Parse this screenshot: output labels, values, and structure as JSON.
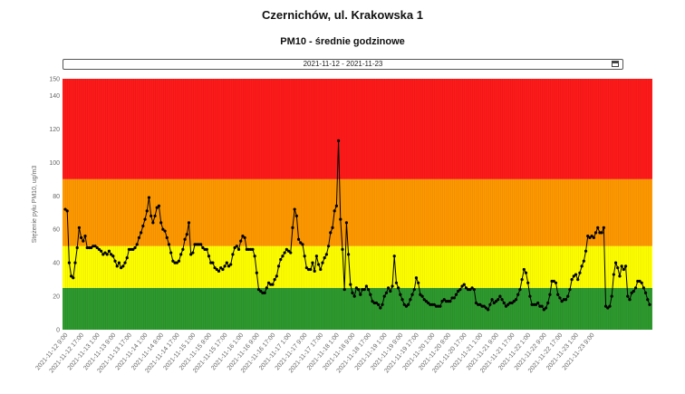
{
  "header": {
    "title": "Czernichów, ul. Krakowska 1",
    "subtitle": "PM10 - średnie godzinowe"
  },
  "range_picker": {
    "value": "2021-11-12  -  2021-11-23",
    "icon": "calendar-icon"
  },
  "chart_data": {
    "type": "line",
    "title": "PM10 - średnie godzinowe",
    "ylabel": "Stężenie pyłu PM10, ug/m3",
    "xlabel": "",
    "ylim": [
      0,
      150
    ],
    "yticks": [
      0,
      20,
      40,
      60,
      80,
      100,
      120,
      140,
      150
    ],
    "grid": false,
    "legend": "none",
    "bands": [
      {
        "from": 0,
        "to": 25,
        "color": "#2e9a2e"
      },
      {
        "from": 25,
        "to": 50,
        "color": "#ffff00"
      },
      {
        "from": 50,
        "to": 90,
        "color": "#ff9900"
      },
      {
        "from": 90,
        "to": 150,
        "color": "#ff1a1a"
      }
    ],
    "x_ticks": [
      "2021-11-12 9:00",
      "2021-11-12 17:00",
      "2021-11-13 1:00",
      "2021-11-13 9:00",
      "2021-11-13 17:00",
      "2021-11-14 1:00",
      "2021-11-14 9:00",
      "2021-11-14 17:00",
      "2021-11-15 1:00",
      "2021-11-15 9:00",
      "2021-11-15 17:00",
      "2021-11-16 1:00",
      "2021-11-16 9:00",
      "2021-11-16 17:00",
      "2021-11-17 1:00",
      "2021-11-17 9:00",
      "2021-11-17 17:00",
      "2021-11-18 1:00",
      "2021-11-18 9:00",
      "2021-11-18 17:00",
      "2021-11-19 1:00",
      "2021-11-19 9:00",
      "2021-11-19 17:00",
      "2021-11-20 1:00",
      "2021-11-20 9:00",
      "2021-11-20 17:00",
      "2021-11-21 1:00",
      "2021-11-21 9:00",
      "2021-11-21 17:00",
      "2021-11-22 1:00",
      "2021-11-22 9:00",
      "2021-11-22 17:00",
      "2021-11-23 1:00",
      "2021-11-23 9:00"
    ],
    "series": [
      {
        "color": "#000000",
        "start": "2021-11-12 9:00",
        "interval_hours": 1,
        "values": [
          72,
          71,
          40,
          32,
          31,
          40,
          49,
          61,
          55,
          53,
          56,
          49,
          49,
          49,
          50,
          50,
          49,
          48,
          47,
          45,
          46,
          45,
          47,
          45,
          44,
          41,
          38,
          40,
          37,
          38,
          40,
          43,
          48,
          48,
          48,
          49,
          51,
          55,
          58,
          62,
          66,
          71,
          79,
          68,
          64,
          68,
          73,
          74,
          64,
          60,
          59,
          55,
          51,
          46,
          41,
          40,
          40,
          41,
          45,
          48,
          54,
          57,
          64,
          45,
          46,
          51,
          51,
          51,
          51,
          49,
          48,
          48,
          44,
          40,
          40,
          37,
          36,
          35,
          37,
          36,
          38,
          40,
          38,
          39,
          45,
          49,
          50,
          48,
          53,
          56,
          55,
          48,
          48,
          48,
          48,
          44,
          34,
          24,
          23,
          22,
          22,
          25,
          28,
          27,
          27,
          30,
          32,
          38,
          42,
          44,
          46,
          48,
          47,
          46,
          61,
          72,
          68,
          54,
          52,
          51,
          44,
          37,
          36,
          36,
          40,
          35,
          44,
          39,
          36,
          40,
          43,
          45,
          50,
          58,
          61,
          71,
          74,
          113,
          66,
          48,
          24,
          64,
          45,
          27,
          22,
          20,
          25,
          24,
          21,
          24,
          24,
          26,
          24,
          21,
          17,
          16,
          16,
          15,
          13,
          15,
          20,
          22,
          25,
          23,
          26,
          44,
          28,
          25,
          21,
          18,
          15,
          14,
          15,
          18,
          21,
          24,
          31,
          28,
          21,
          20,
          18,
          17,
          16,
          15,
          15,
          15,
          14,
          14,
          14,
          17,
          18,
          17,
          17,
          17,
          19,
          19,
          21,
          23,
          24,
          26,
          27,
          25,
          24,
          24,
          25,
          24,
          16,
          15,
          15,
          14,
          14,
          13,
          12,
          15,
          18,
          16,
          17,
          18,
          20,
          18,
          16,
          14,
          15,
          16,
          16,
          17,
          18,
          21,
          24,
          30,
          36,
          34,
          28,
          20,
          15,
          15,
          15,
          16,
          14,
          14,
          12,
          13,
          16,
          21,
          29,
          29,
          28,
          21,
          19,
          17,
          18,
          18,
          20,
          24,
          30,
          32,
          33,
          30,
          34,
          38,
          41,
          47,
          56,
          55,
          56,
          55,
          58,
          61,
          58,
          58,
          61,
          14,
          13,
          14,
          20,
          33,
          40,
          37,
          32,
          38,
          36,
          38,
          20,
          18,
          22,
          23,
          25,
          29,
          29,
          28,
          25,
          22,
          18,
          15
        ]
      }
    ]
  }
}
